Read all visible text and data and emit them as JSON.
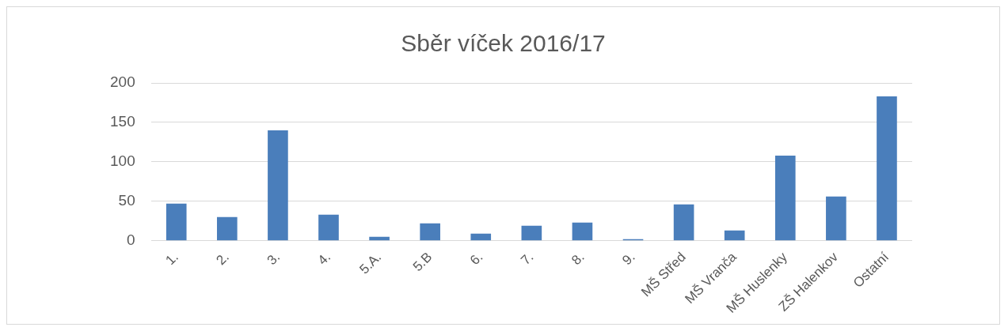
{
  "chart_data": {
    "type": "bar",
    "title": "Sběr víček 2016/17",
    "categories": [
      "1.",
      "2.",
      "3.",
      "4.",
      "5.A.",
      "5.B",
      "6.",
      "7.",
      "8.",
      "9.",
      "MŠ Střed",
      "MŠ Vranča",
      "MŠ Huslenky",
      "ZŠ Halenkov",
      "Ostatní"
    ],
    "values": [
      47,
      30,
      140,
      33,
      5,
      22,
      9,
      19,
      23,
      2,
      46,
      13,
      108,
      56,
      183
    ],
    "color": "#4a7ebb",
    "ylim": [
      0,
      200
    ],
    "yticks": [
      0,
      50,
      100,
      150,
      200
    ],
    "grid": "y",
    "legend": false
  }
}
